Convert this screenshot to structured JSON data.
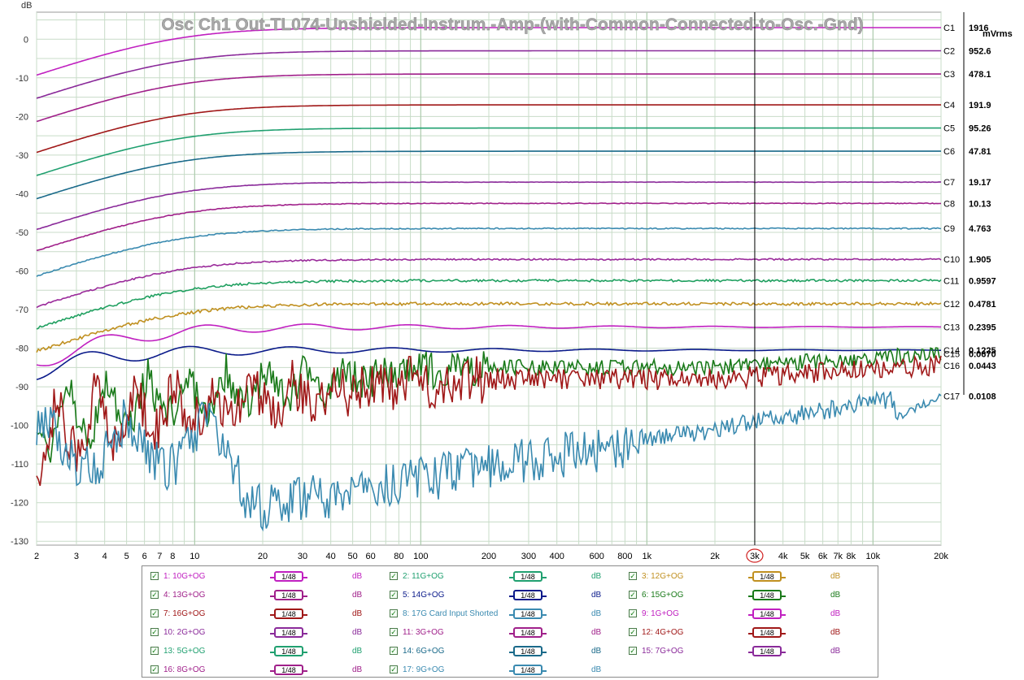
{
  "chart_data": {
    "type": "line",
    "title": "Osc Ch1 Out-TL074-Unshielded-Instrum.-Amp-(with-Common-Connected-to-Osc.-Gnd)",
    "ylabel": "dB",
    "y_unit_label": "mVrms",
    "xscale": "log",
    "xlim": [
      2,
      20000
    ],
    "ylim": [
      -131,
      7
    ],
    "grid": true,
    "cursor_x": 3000,
    "cursor_label": "3k",
    "y_ticks": [
      0,
      -10,
      -20,
      -30,
      -40,
      -50,
      -60,
      -70,
      -80,
      -90,
      -100,
      -110,
      -120,
      -130
    ],
    "y_tick_labels": [
      "0",
      "-10",
      "-20",
      "-30",
      "-40",
      "-50",
      "-60",
      "-70",
      "-80",
      "-90",
      "-100",
      "-110",
      "-120",
      "-130"
    ],
    "x_ticks": [
      2,
      3,
      4,
      5,
      6,
      7,
      8,
      10,
      20,
      30,
      40,
      50,
      60,
      80,
      100,
      200,
      300,
      400,
      600,
      800,
      1000,
      2000,
      3000,
      4000,
      5000,
      6000,
      7000,
      8000,
      10000,
      20000
    ],
    "x_tick_labels": [
      "2",
      "3",
      "4",
      "5",
      "6",
      "7",
      "8",
      "10",
      "20",
      "30",
      "40",
      "50",
      "60",
      "80",
      "100",
      "200",
      "300",
      "400",
      "600",
      "800",
      "1k",
      "2k",
      "3k",
      "4k",
      "5k",
      "6k",
      "7k",
      "8k",
      "10k",
      "20k"
    ],
    "series": [
      {
        "id": "C1",
        "value_label": "1916",
        "level": 3,
        "color": "#c020c0",
        "shape": "rolloff",
        "hp": 8,
        "noise": 0
      },
      {
        "id": "C2",
        "value_label": "952.6",
        "level": -3,
        "color": "#8a2a9a",
        "shape": "rolloff",
        "hp": 8,
        "noise": 0
      },
      {
        "id": "C3",
        "value_label": "478.1",
        "level": -9,
        "color": "#a0208a",
        "shape": "rolloff",
        "hp": 8,
        "noise": 0
      },
      {
        "id": "C4",
        "value_label": "191.9",
        "level": -17,
        "color": "#a01818",
        "shape": "rolloff",
        "hp": 8,
        "noise": 0
      },
      {
        "id": "C5",
        "value_label": "95.26",
        "level": -23,
        "color": "#20a070",
        "shape": "rolloff",
        "hp": 8,
        "noise": 0
      },
      {
        "id": "C6",
        "value_label": "47.81",
        "level": -29,
        "color": "#1a6a8a",
        "shape": "rolloff",
        "hp": 8,
        "noise": 0
      },
      {
        "id": "C7",
        "value_label": "19.17",
        "level": -37,
        "color": "#8a2a9a",
        "shape": "rolloff",
        "hp": 8,
        "noise": 0.1
      },
      {
        "id": "C8",
        "value_label": "10.13",
        "level": -42.5,
        "color": "#a0208a",
        "shape": "rolloff",
        "hp": 8,
        "noise": 0.2
      },
      {
        "id": "C9",
        "value_label": "4.763",
        "level": -49,
        "color": "#3a8ab0",
        "shape": "rolloff",
        "hp": 8,
        "noise": 0.3
      },
      {
        "id": "C10",
        "value_label": "1.905",
        "level": -57,
        "color": "#9a2a9a",
        "shape": "rolloff",
        "hp": 8,
        "noise": 0.4
      },
      {
        "id": "C11",
        "value_label": "0.9597",
        "level": -62.5,
        "color": "#20a060",
        "shape": "rolloff",
        "hp": 8,
        "noise": 0.6
      },
      {
        "id": "C12",
        "value_label": "0.4781",
        "level": -68.5,
        "color": "#c09020",
        "shape": "rolloff",
        "hp": 8,
        "noise": 0.8
      },
      {
        "id": "C13",
        "value_label": "0.2395",
        "level": -74.5,
        "color": "#c020c0",
        "shape": "wavy",
        "hp": 5,
        "noise": 1.2
      },
      {
        "id": "C14",
        "value_label": "0.1225",
        "level": -80.5,
        "color": "#0a1a8a",
        "shape": "wavy",
        "hp": 3,
        "noise": 1.5
      },
      {
        "id": "C15",
        "value_label": "0.0670",
        "level": -85,
        "color": "#1a7a1a",
        "shape": "noisy",
        "hp": 3,
        "noise": 3
      },
      {
        "id": "C16",
        "value_label": "0.0443",
        "level": -88,
        "color": "#a01818",
        "shape": "noisy",
        "hp": 3,
        "noise": 4
      },
      {
        "id": "C17",
        "value_label": "0.0108",
        "level": -91,
        "color": "#3a8ab0",
        "shape": "floor",
        "hp": 2,
        "noise": 6
      }
    ]
  },
  "legend": {
    "items": [
      {
        "label": "1: 10G+OG",
        "smoothing": "1/48",
        "unit": "dB",
        "color": "#c020c0"
      },
      {
        "label": "2: 11G+OG",
        "smoothing": "1/48",
        "unit": "dB",
        "color": "#20a070"
      },
      {
        "label": "3: 12G+OG",
        "smoothing": "1/48",
        "unit": "dB",
        "color": "#c09020"
      },
      {
        "label": "4: 13G+OG",
        "smoothing": "1/48",
        "unit": "dB",
        "color": "#a0208a"
      },
      {
        "label": "5: 14G+OG",
        "smoothing": "1/48",
        "unit": "dB",
        "color": "#0a1a8a"
      },
      {
        "label": "6: 15G+OG",
        "smoothing": "1/48",
        "unit": "dB",
        "color": "#1a7a1a"
      },
      {
        "label": "7: 16G+OG",
        "smoothing": "1/48",
        "unit": "dB",
        "color": "#a01818"
      },
      {
        "label": "8: 17G Card  Input Shorted",
        "smoothing": "1/48",
        "unit": "dB",
        "color": "#3a8ab0"
      },
      {
        "label": "9: 1G+OG",
        "smoothing": "1/48",
        "unit": "dB",
        "color": "#c020c0"
      },
      {
        "label": "10: 2G+OG",
        "smoothing": "1/48",
        "unit": "dB",
        "color": "#8a2a9a"
      },
      {
        "label": "11: 3G+OG",
        "smoothing": "1/48",
        "unit": "dB",
        "color": "#a0208a"
      },
      {
        "label": "12: 4G+OG",
        "smoothing": "1/48",
        "unit": "dB",
        "color": "#a01818"
      },
      {
        "label": "13: 5G+OG",
        "smoothing": "1/48",
        "unit": "dB",
        "color": "#20a070"
      },
      {
        "label": "14: 6G+OG",
        "smoothing": "1/48",
        "unit": "dB",
        "color": "#1a6a8a"
      },
      {
        "label": "15: 7G+OG",
        "smoothing": "1/48",
        "unit": "dB",
        "color": "#8a2a9a"
      },
      {
        "label": "16: 8G+OG",
        "smoothing": "1/48",
        "unit": "dB",
        "color": "#a0208a"
      },
      {
        "label": "17: 9G+OG",
        "smoothing": "1/48",
        "unit": "dB",
        "color": "#3a8ab0"
      }
    ]
  }
}
